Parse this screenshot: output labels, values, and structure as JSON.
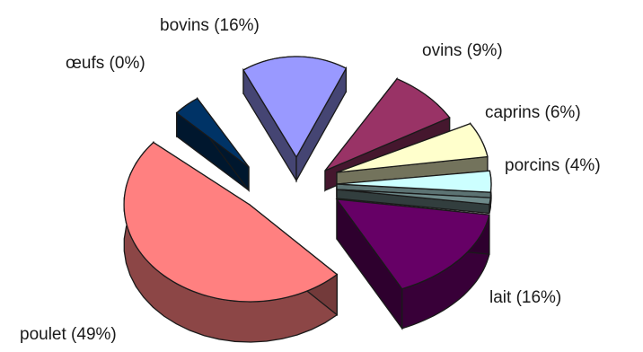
{
  "chart_data": {
    "type": "pie",
    "title": "",
    "three_d": true,
    "exploded": true,
    "slices": [
      {
        "label": "poulet (49%)",
        "name": "poulet",
        "value": 49,
        "color": "#ff8080"
      },
      {
        "label": "œufs (0%)",
        "name": "œufs",
        "value": 0,
        "color": "#003366"
      },
      {
        "label": "bovins (16%)",
        "name": "bovins",
        "value": 16,
        "color": "#9999ff"
      },
      {
        "label": "ovins (9%)",
        "name": "ovins",
        "value": 9,
        "color": "#993366"
      },
      {
        "label": "caprins (6%)",
        "name": "caprins",
        "value": 6,
        "color": "#ffffcc"
      },
      {
        "label": "porcins (4%)",
        "name": "porcins",
        "value": 4,
        "color": "#ccffff"
      },
      {
        "label": "lait (16%)",
        "name": "lait",
        "value": 16,
        "color": "#660066"
      }
    ],
    "separator_color": "#6e8a8a"
  }
}
